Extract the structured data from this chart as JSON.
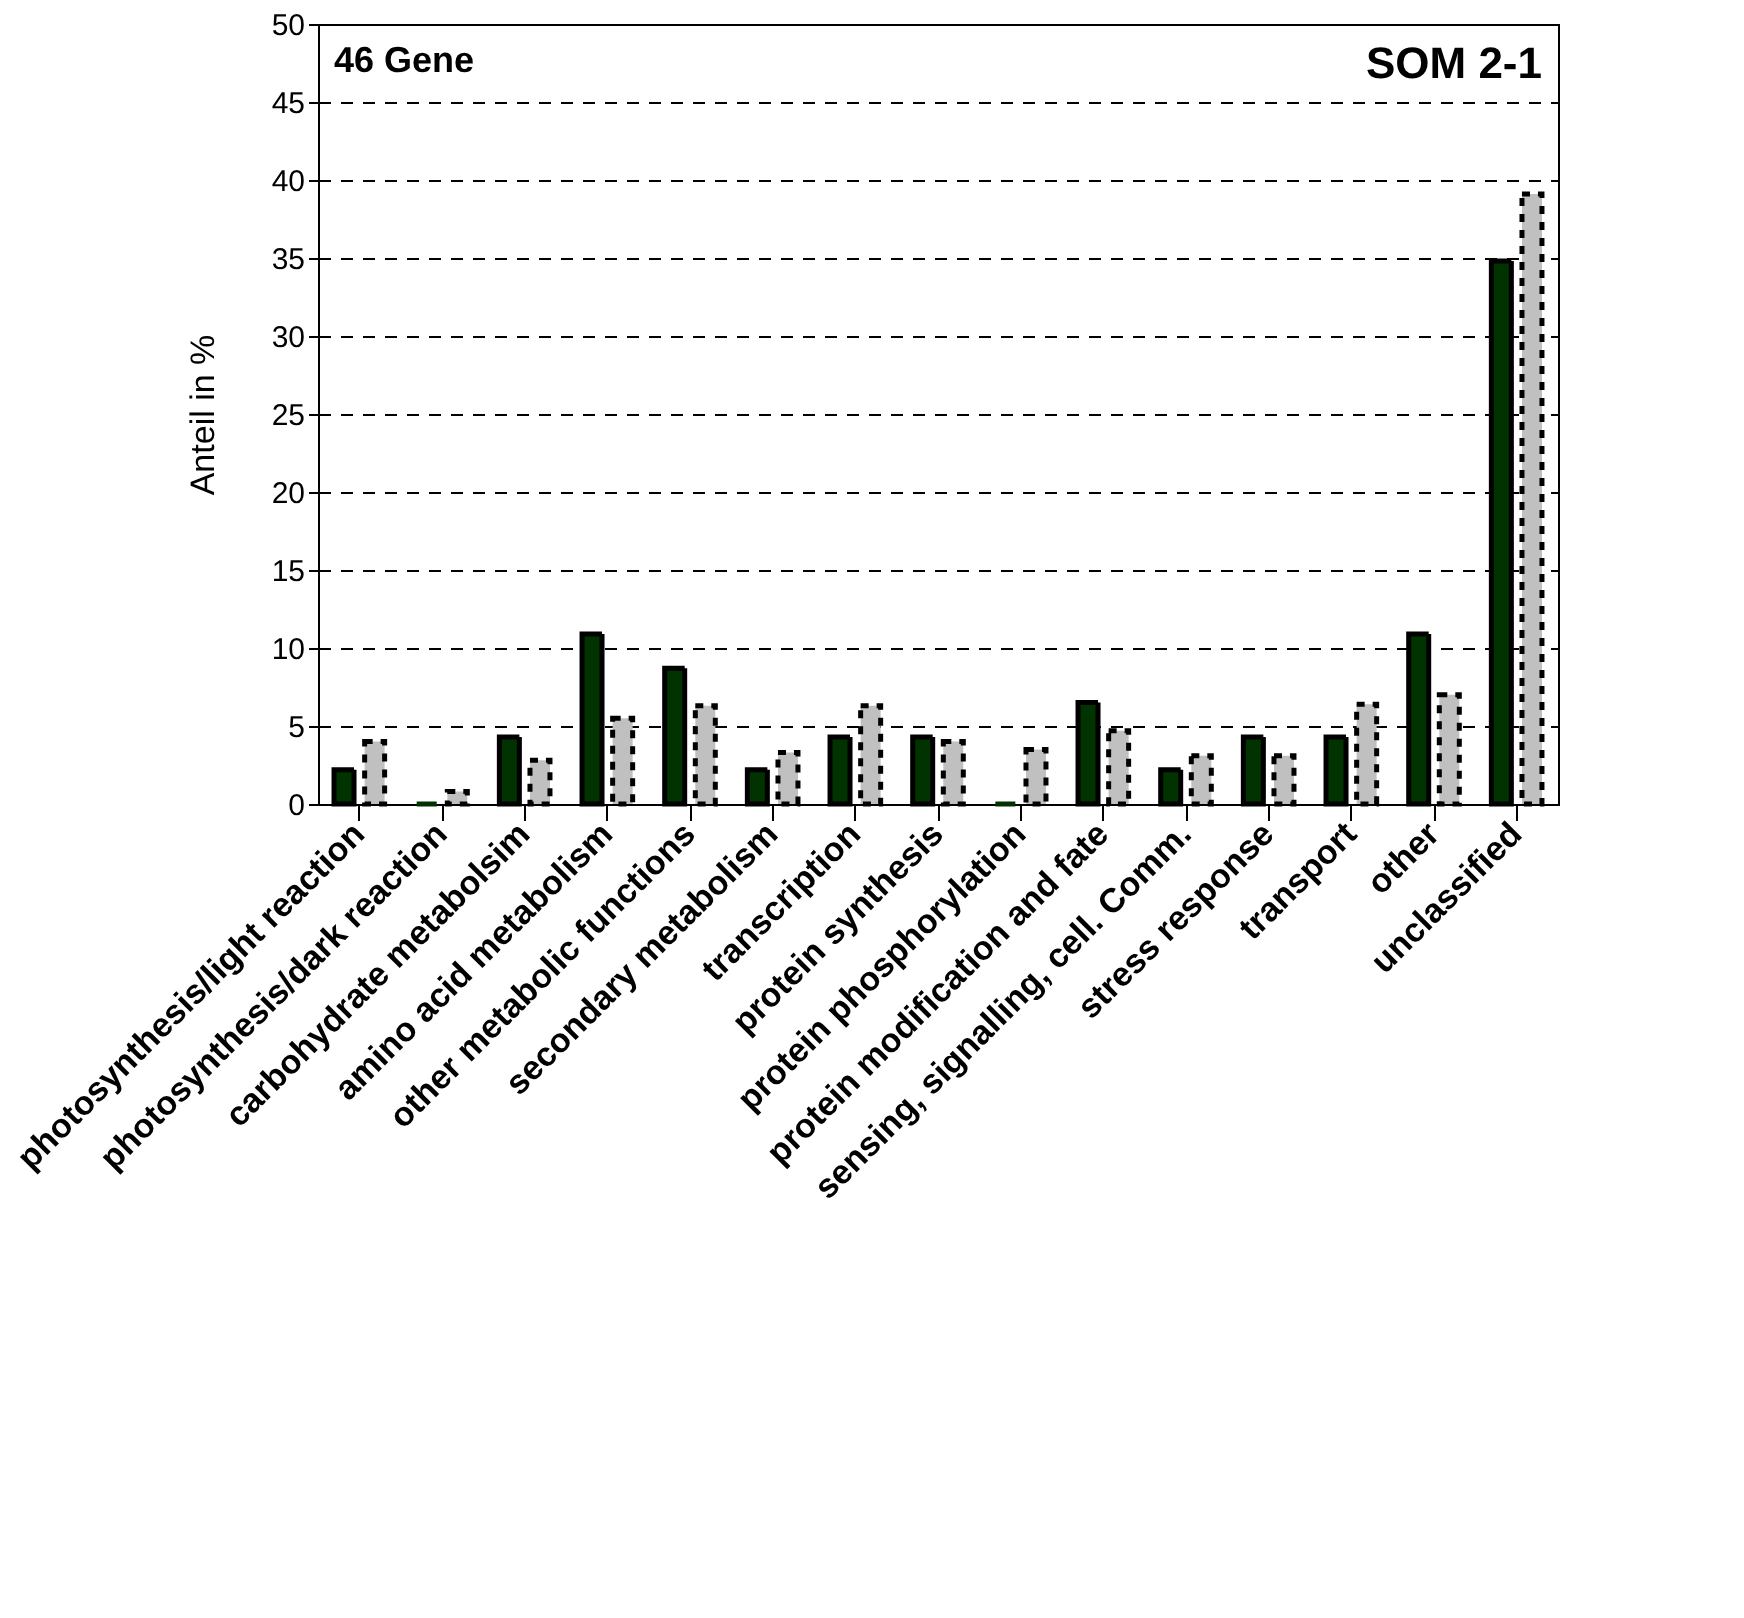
{
  "chart_data": {
    "type": "bar",
    "ylabel": "Anteil in %",
    "categories": [
      "photosynthesis/light reaction",
      "photosynthesis/dark reaction",
      "carbohydrate metabolsim",
      "amino acid metabolism",
      "other metabolic functions",
      "secondary metabolism",
      "transcription",
      "protein synthesis",
      "protein phosphorylation",
      "protein modification and fate",
      "sensing, signalling, cell. Comm.",
      "stress response",
      "transport",
      "other",
      "unclassified"
    ],
    "series": [
      {
        "color": "#003300",
        "line_style": "solid",
        "values": [
          2.2,
          0,
          4.3,
          10.9,
          8.7,
          2.2,
          4.3,
          4.3,
          0,
          6.5,
          2.2,
          4.3,
          4.3,
          10.9,
          34.8
        ]
      },
      {
        "color": "#c0c0c0",
        "line_style": "dashed",
        "values": [
          4.0,
          0.8,
          2.8,
          5.5,
          6.3,
          3.3,
          6.3,
          4.0,
          3.5,
          4.7,
          3.1,
          3.1,
          6.4,
          7.0,
          39.1
        ]
      }
    ],
    "ylim": [
      0,
      50
    ],
    "yticks": [
      0,
      5,
      10,
      15,
      20,
      25,
      30,
      35,
      40,
      45,
      50
    ],
    "grid": "y",
    "annotations": [
      "46 Gene",
      "SOM 2-1"
    ]
  }
}
